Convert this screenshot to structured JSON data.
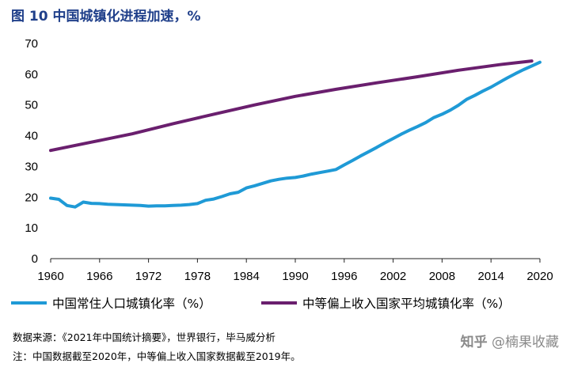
{
  "title": "图 10  中国城镇化进程加速，%",
  "chart_data": {
    "type": "line",
    "xlim": [
      1960,
      2020
    ],
    "ylim": [
      0,
      70
    ],
    "xticks": [
      "1960",
      "1966",
      "1972",
      "1978",
      "1984",
      "1990",
      "1996",
      "2002",
      "2008",
      "2014",
      "2020"
    ],
    "yticks": [
      "0",
      "10",
      "20",
      "30",
      "40",
      "50",
      "60",
      "70"
    ],
    "grid": false,
    "legend_position": "bottom",
    "series": [
      {
        "name": "中国常住人口城镇化率（%）",
        "color": "#1f9ad6",
        "x": [
          1960,
          1961,
          1962,
          1963,
          1964,
          1965,
          1966,
          1967,
          1968,
          1969,
          1970,
          1971,
          1972,
          1973,
          1974,
          1975,
          1976,
          1977,
          1978,
          1979,
          1980,
          1981,
          1982,
          1983,
          1984,
          1985,
          1986,
          1987,
          1988,
          1989,
          1990,
          1991,
          1992,
          1993,
          1994,
          1995,
          1996,
          1997,
          1998,
          1999,
          2000,
          2001,
          2002,
          2003,
          2004,
          2005,
          2006,
          2007,
          2008,
          2009,
          2010,
          2011,
          2012,
          2013,
          2014,
          2015,
          2016,
          2017,
          2018,
          2019,
          2020
        ],
        "values": [
          19.7,
          19.3,
          17.3,
          16.8,
          18.4,
          18.0,
          17.9,
          17.7,
          17.6,
          17.5,
          17.4,
          17.3,
          17.1,
          17.2,
          17.2,
          17.3,
          17.4,
          17.6,
          17.9,
          19.0,
          19.4,
          20.2,
          21.1,
          21.6,
          23.0,
          23.7,
          24.5,
          25.3,
          25.8,
          26.2,
          26.4,
          26.9,
          27.5,
          28.0,
          28.5,
          29.0,
          30.5,
          31.9,
          33.4,
          34.8,
          36.2,
          37.7,
          39.1,
          40.5,
          41.8,
          43.0,
          44.3,
          45.9,
          47.0,
          48.3,
          49.9,
          51.8,
          53.1,
          54.5,
          55.8,
          57.3,
          58.8,
          60.2,
          61.5,
          62.7,
          63.9
        ]
      },
      {
        "name": "中等偏上收入国家平均城镇化率（%）",
        "color": "#6a1f6e",
        "x": [
          1960,
          1965,
          1970,
          1975,
          1980,
          1985,
          1990,
          1995,
          2000,
          2005,
          2010,
          2015,
          2019
        ],
        "values": [
          35.2,
          37.9,
          40.6,
          43.9,
          47.0,
          50.0,
          52.8,
          55.1,
          57.2,
          59.2,
          61.3,
          63.1,
          64.3
        ]
      }
    ]
  },
  "notes": {
    "source": "数据来源：《2021年中国统计摘要》，世界银行，毕马威分析",
    "footnote": "注：中国数据截至2020年，中等偏上收入国家数据截至2019年。"
  },
  "watermark": {
    "brand": "知乎",
    "author": "@楠果收藏"
  }
}
